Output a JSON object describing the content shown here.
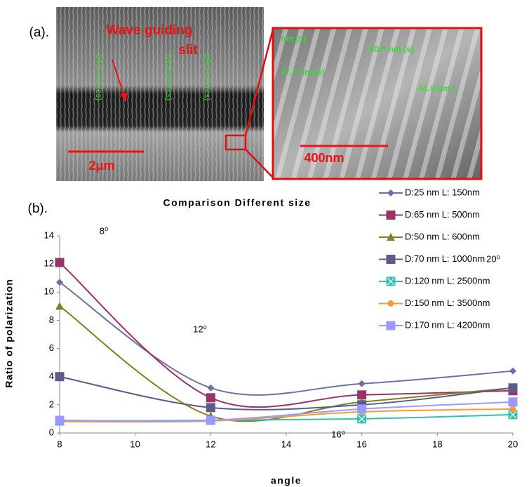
{
  "panel_a": {
    "label": "(a).",
    "slit_label_1": "Wave guiding",
    "slit_label_2": "slit",
    "scale_left": "2μm",
    "scale_right": "400nm",
    "measures_left": [
      "84.2 nm (cs)",
      "84.8 nm (cs)",
      "88.3 nm (cs)"
    ],
    "measures_right": [
      "nm (s)",
      "40.0 nm (s)",
      "47.0 nm (s)",
      "51.0 nm ("
    ]
  },
  "chart_data": {
    "type": "line",
    "panel_label": "(b).",
    "title": "Comparison Different size",
    "x_label": "angle",
    "y_label": "Ratio of polarization",
    "x": [
      8,
      12,
      16,
      20
    ],
    "xlim": [
      8,
      20
    ],
    "xticks": [
      8,
      10,
      12,
      14,
      16,
      18,
      20
    ],
    "ylim": [
      0,
      14
    ],
    "yticks": [
      0,
      2,
      4,
      6,
      8,
      10,
      12,
      14
    ],
    "grid": false,
    "legend": "top-right",
    "annotations": [
      "8⁰",
      "12⁰",
      "16⁰",
      "20⁰"
    ],
    "series": [
      {
        "name": "D:25 nm L: 150nm",
        "color": "#6f6fa8",
        "marker": "diamond",
        "values": [
          10.7,
          3.2,
          3.5,
          4.4
        ]
      },
      {
        "name": "D:65 nm L: 500nm",
        "color": "#993366",
        "marker": "square",
        "values": [
          12.1,
          2.5,
          2.7,
          3.0
        ]
      },
      {
        "name": "D:50 nm L: 600nm",
        "color": "#808020",
        "marker": "triangle",
        "values": [
          9.0,
          1.2,
          2.2,
          3.2
        ]
      },
      {
        "name": "D:70 nm L: 1000nm",
        "color": "#5c5c8a",
        "marker": "square",
        "values": [
          4.0,
          1.8,
          2.0,
          3.2
        ]
      },
      {
        "name": "D:120 nm L: 2500nm",
        "color": "#33c0b0",
        "marker": "xsquare",
        "values": [
          0.85,
          0.9,
          1.0,
          1.3
        ]
      },
      {
        "name": "D:150 nm L: 3500nm",
        "color": "#ff9933",
        "marker": "circle",
        "values": [
          0.8,
          0.85,
          1.5,
          1.7
        ]
      },
      {
        "name": "D:170 nm L: 4200nm",
        "color": "#9999ff",
        "marker": "square",
        "values": [
          0.9,
          0.9,
          1.7,
          2.2
        ]
      }
    ]
  }
}
